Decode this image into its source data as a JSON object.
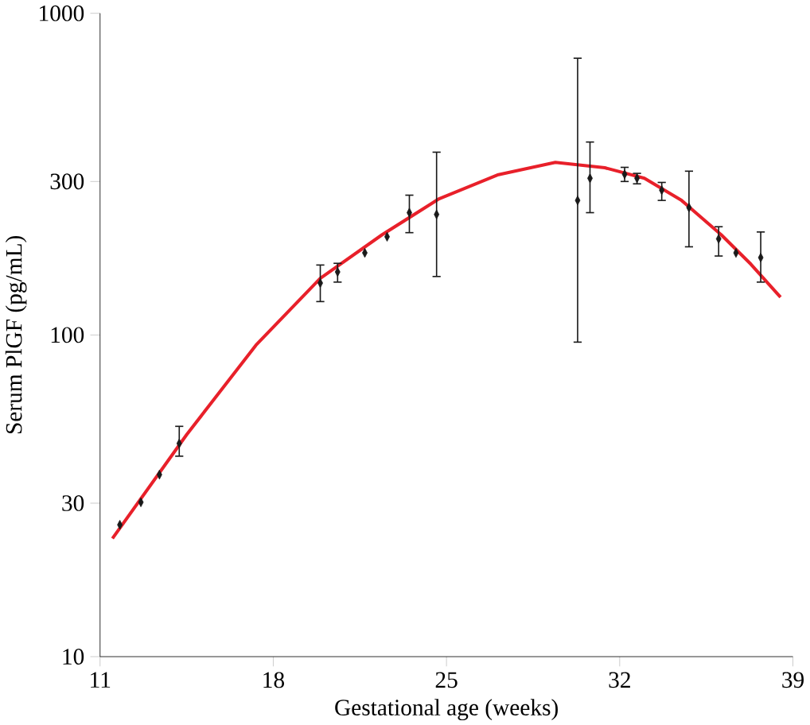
{
  "chart_data": {
    "type": "scatter",
    "xlabel": "Gestational age (weeks)",
    "ylabel": "Serum PlGF (pg/mL)",
    "log": "y",
    "xlim": [
      11,
      39
    ],
    "xticks": [
      11,
      18,
      25,
      32,
      39
    ],
    "ylim": [
      10,
      1000
    ],
    "yticks": [
      10,
      30,
      100,
      300,
      1000
    ],
    "series": [
      {
        "type": "line",
        "color": "#e8202a",
        "marker": "none",
        "line_style": "solid",
        "x": [
          11.5,
          14.5,
          17.3,
          19.9,
          22.4,
          24.7,
          27.1,
          29.4,
          31.4,
          33.0,
          34.5,
          36.1,
          37.3,
          38.5
        ],
        "values": [
          23.3,
          49,
          93,
          150,
          205,
          265,
          315,
          344,
          331,
          307,
          262,
          205,
          166,
          131
        ]
      },
      {
        "color": "#1a1a1a",
        "marker": "diamond",
        "x": [
          11.8,
          12.65,
          13.4,
          14.2,
          19.9,
          20.6,
          21.7,
          22.6,
          23.5,
          24.6,
          30.3,
          30.8,
          32.2,
          32.7,
          33.7,
          34.8,
          36.0,
          36.7,
          37.7
        ],
        "values": [
          25.7,
          30.2,
          36.8,
          46,
          145,
          157,
          180,
          202,
          240,
          237,
          262,
          307,
          316,
          307,
          282,
          249,
          199,
          180,
          174
        ],
        "errors": [
          null,
          null,
          null,
          [
            42,
            52
          ],
          [
            127,
            165
          ],
          [
            146,
            167
          ],
          null,
          null,
          [
            208,
            272
          ],
          [
            152,
            370
          ],
          [
            95,
            725
          ],
          [
            240,
            398
          ],
          [
            300,
            332
          ],
          [
            295,
            318
          ],
          [
            262,
            298
          ],
          [
            188,
            323
          ],
          [
            176,
            217
          ],
          null,
          [
            146,
            209
          ]
        ]
      }
    ]
  }
}
